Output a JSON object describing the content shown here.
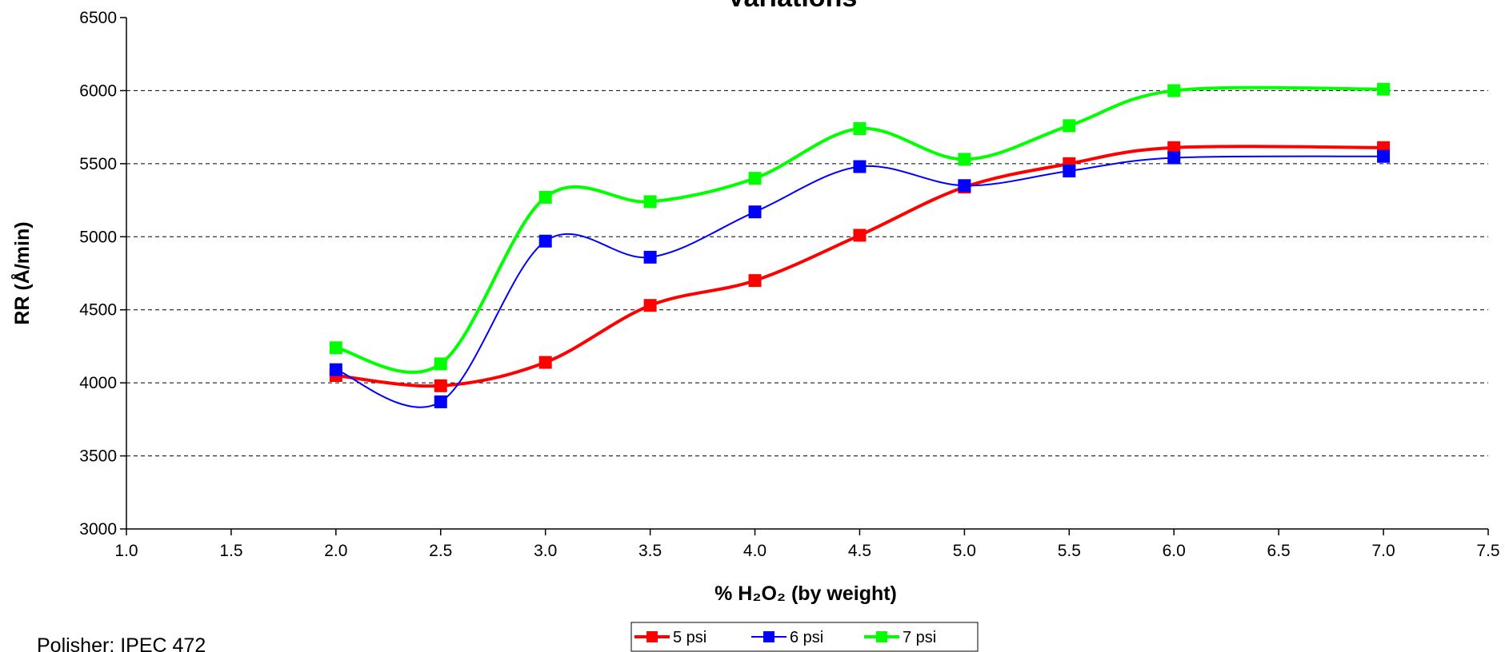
{
  "chart_data": {
    "type": "line",
    "title": "Variations",
    "xlabel": "% H₂O₂ (by weight)",
    "ylabel": "RR (Å/min)",
    "xlim": [
      1.0,
      7.5
    ],
    "ylim": [
      3000,
      6500
    ],
    "x_ticks": [
      "1.0",
      "1.5",
      "2.0",
      "2.5",
      "3.0",
      "3.5",
      "4.0",
      "4.5",
      "5.0",
      "5.5",
      "6.0",
      "6.5",
      "7.0",
      "7.5"
    ],
    "y_ticks": [
      "3000",
      "3500",
      "4000",
      "4500",
      "5000",
      "5500",
      "6000",
      "6500"
    ],
    "grid": "horizontal dashed",
    "legend_position": "bottom-center",
    "x": [
      2.0,
      2.5,
      3.0,
      3.5,
      4.0,
      4.5,
      5.0,
      5.5,
      6.0,
      7.0
    ],
    "series": [
      {
        "name": "5 psi",
        "color": "#ff0000",
        "values": [
          4050,
          3980,
          4140,
          4530,
          4700,
          5010,
          5340,
          5500,
          5610,
          5610
        ]
      },
      {
        "name": "6 psi",
        "color": "#0000ff",
        "values": [
          4090,
          3870,
          4970,
          4860,
          5170,
          5480,
          5350,
          5450,
          5540,
          5550
        ]
      },
      {
        "name": "7 psi",
        "color": "#00ff00",
        "values": [
          4240,
          4130,
          5270,
          5240,
          5400,
          5740,
          5530,
          5760,
          6000,
          6010
        ]
      }
    ]
  },
  "footnote": "Polisher: IPEC 472"
}
